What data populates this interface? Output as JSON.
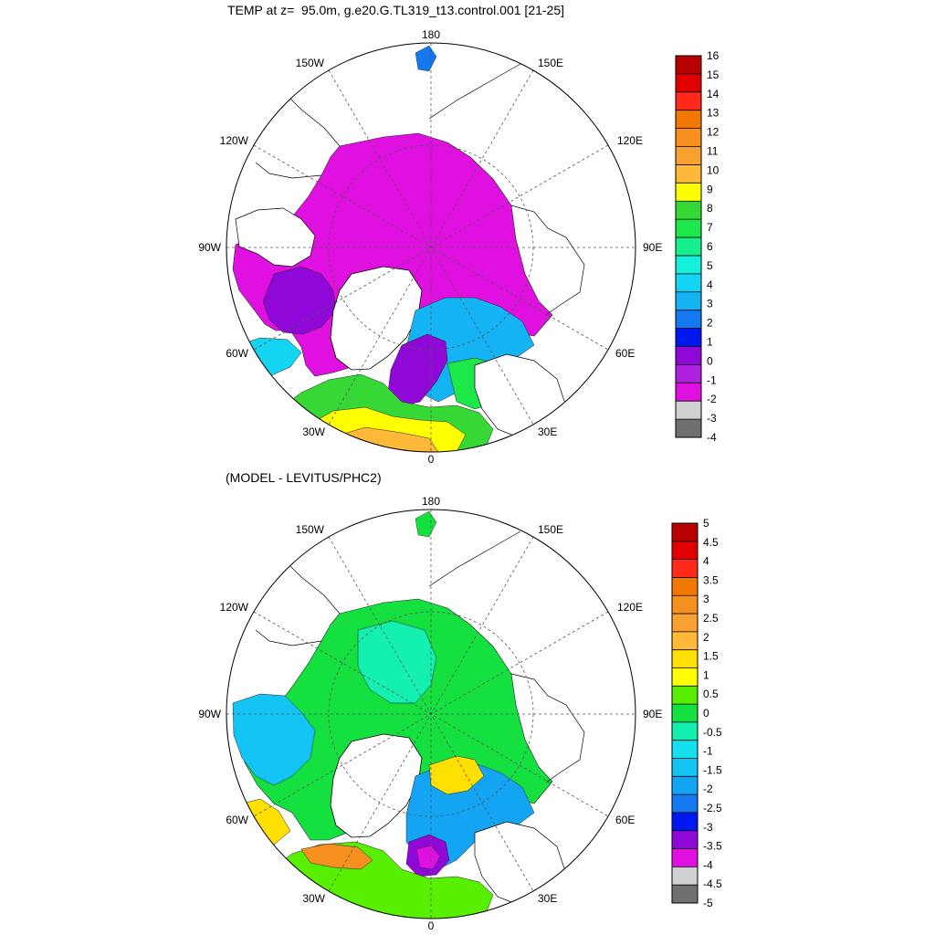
{
  "panels": [
    {
      "title": "TEMP at z=  95.0m, g.e20.G.TL319_t13.control.001 [21-25]",
      "colorbar": {
        "labels": [
          "16",
          "15",
          "14",
          "13",
          "12",
          "11",
          "10",
          "9",
          "8",
          "7",
          "6",
          "5",
          "4",
          "3",
          "2",
          "1",
          "0",
          "-1",
          "-2",
          "-3",
          "-4"
        ],
        "colors": [
          "#b80000",
          "#e00000",
          "#ff2a1a",
          "#f07800",
          "#f89020",
          "#f8a030",
          "#ffb838",
          "#ffff00",
          "#36d836",
          "#1ce84a",
          "#14f08e",
          "#14f0dc",
          "#14d4f4",
          "#14b4f4",
          "#1478f0",
          "#0018f0",
          "#9008d8",
          "#b020e0",
          "#e010e0",
          "#d0d0d0",
          "#707070"
        ]
      }
    },
    {
      "title": "(MODEL - LEVITUS/PHC2)",
      "colorbar": {
        "labels": [
          "5",
          "4.5",
          "4",
          "3.5",
          "3",
          "2.5",
          "2",
          "1.5",
          "1",
          "0.5",
          "0",
          "-0.5",
          "-1",
          "-1.5",
          "-2",
          "-2.5",
          "-3",
          "-3.5",
          "-4",
          "-4.5",
          "-5"
        ],
        "colors": [
          "#b80000",
          "#e00000",
          "#ff2a1a",
          "#f07800",
          "#f89020",
          "#f8a030",
          "#ffb838",
          "#ffe000",
          "#ffff00",
          "#58f000",
          "#14e040",
          "#14f0b0",
          "#14e0f0",
          "#14c4f4",
          "#14a4f4",
          "#1478f0",
          "#0018f0",
          "#9008d8",
          "#e010e0",
          "#d0d0d0",
          "#707070"
        ]
      }
    }
  ],
  "map_labels": {
    "lon_180": "180",
    "lon_150w": "150W",
    "lon_150e": "150E",
    "lon_120w": "120W",
    "lon_120e": "120E",
    "lon_90w": "90W",
    "lon_90e": "90E",
    "lon_60w": "60W",
    "lon_60e": "60E",
    "lon_30w": "30W",
    "lon_30e": "30E",
    "lon_0": "0"
  }
}
